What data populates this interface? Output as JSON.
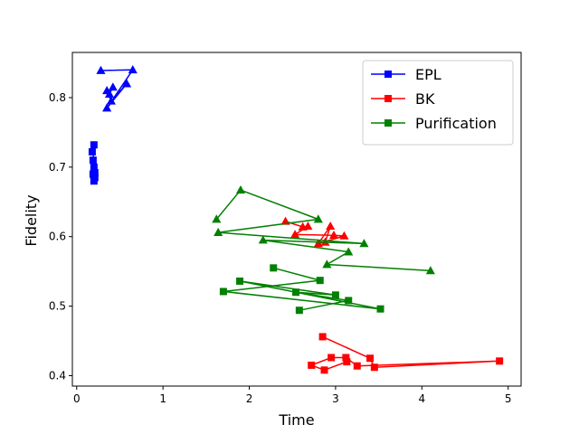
{
  "chart_data": {
    "type": "line",
    "title": "",
    "xlabel": "Time",
    "ylabel": "Fidelity",
    "xlim": [
      -0.05,
      5.15
    ],
    "ylim": [
      0.385,
      0.865
    ],
    "xticks": [
      0,
      1,
      2,
      3,
      4,
      5
    ],
    "yticks": [
      0.4,
      0.5,
      0.6,
      0.7,
      0.8
    ],
    "grid": false,
    "legend_position": "top-right",
    "legend_marker": "square",
    "series": [
      {
        "name": "EPL",
        "color": "#0000ff",
        "x": [
          0.18,
          0.2,
          0.19,
          0.2,
          0.21,
          0.2,
          0.21,
          0.19,
          0.2
        ],
        "y": [
          0.722,
          0.732,
          0.71,
          0.7,
          0.692,
          0.688,
          0.685,
          0.69,
          0.68
        ],
        "marker": "square"
      },
      {
        "name": "",
        "color": "#0000ff",
        "x": [
          0.28,
          0.65,
          0.35,
          0.58,
          0.4,
          0.35
        ],
        "y": [
          0.839,
          0.84,
          0.785,
          0.82,
          0.795,
          0.81
        ],
        "marker": "triangle"
      },
      {
        "name": "",
        "color": "#0000ff",
        "x": [
          0.38,
          0.42
        ],
        "y": [
          0.805,
          0.815
        ],
        "marker": "triangle"
      },
      {
        "name": "BK",
        "color": "#ff0000",
        "x": [
          2.85,
          3.4,
          3.45,
          4.9,
          3.25,
          3.12,
          2.95,
          2.72,
          2.87,
          3.13
        ],
        "y": [
          0.456,
          0.425,
          0.412,
          0.421,
          0.414,
          0.426,
          0.426,
          0.415,
          0.408,
          0.42
        ],
        "marker": "square"
      },
      {
        "name": "",
        "color": "#ff0000",
        "x": [
          2.42,
          2.62,
          2.68,
          2.53,
          2.98,
          3.1,
          2.8,
          2.94,
          2.88
        ],
        "y": [
          0.622,
          0.614,
          0.615,
          0.603,
          0.602,
          0.601,
          0.59,
          0.615,
          0.592
        ],
        "marker": "triangle"
      },
      {
        "name": "Purification",
        "color": "#008000",
        "x": [
          2.28,
          2.82,
          1.7,
          3.52,
          1.89,
          3.0,
          2.54,
          3.15,
          2.58
        ],
        "y": [
          0.555,
          0.537,
          0.521,
          0.496,
          0.536,
          0.516,
          0.52,
          0.508,
          0.494
        ],
        "marker": "square"
      },
      {
        "name": "",
        "color": "#008000",
        "x": [
          1.62,
          1.9,
          2.8,
          1.64,
          3.33,
          2.16,
          3.15,
          2.9,
          4.1
        ],
        "y": [
          0.625,
          0.667,
          0.625,
          0.606,
          0.59,
          0.595,
          0.578,
          0.56,
          0.551
        ],
        "marker": "triangle"
      }
    ]
  }
}
